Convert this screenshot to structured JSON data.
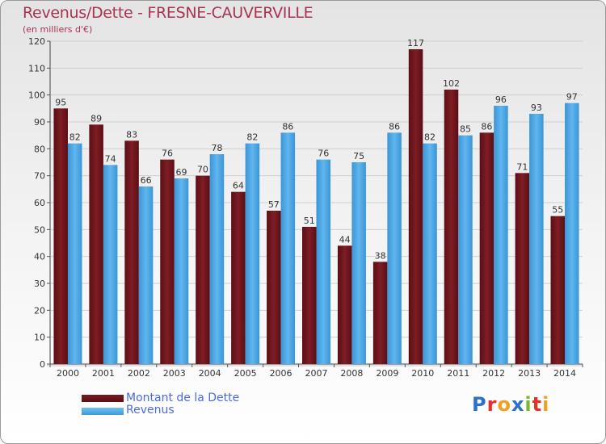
{
  "chart_data": {
    "type": "bar",
    "title": "Revenus/Dette - FRESNE-CAUVERVILLE",
    "subtitle": "(en milliers d'€)",
    "categories": [
      "2000",
      "2001",
      "2002",
      "2003",
      "2004",
      "2005",
      "2006",
      "2007",
      "2008",
      "2009",
      "2010",
      "2011",
      "2012",
      "2013",
      "2014"
    ],
    "series": [
      {
        "name": "Montant de la Dette",
        "color": "#6b1419",
        "values": [
          95,
          89,
          83,
          76,
          70,
          64,
          57,
          51,
          44,
          38,
          117,
          102,
          86,
          71,
          55
        ]
      },
      {
        "name": "Revenus",
        "color": "#4aa6e6",
        "values": [
          82,
          74,
          66,
          69,
          78,
          82,
          86,
          76,
          75,
          86,
          82,
          85,
          96,
          93,
          97
        ]
      }
    ],
    "ylim": [
      0,
      120
    ],
    "yticks": [
      0,
      10,
      20,
      30,
      40,
      50,
      60,
      70,
      80,
      90,
      100,
      110,
      120
    ],
    "grid": true,
    "legend_position": "bottom-left",
    "data_labels": true
  },
  "logo": {
    "text": "Proxiti",
    "colors": [
      "#2e6fc8",
      "#e8302a",
      "#f0a020",
      "#2e6fc8",
      "#7cb82e",
      "#e8302a",
      "#f0a020"
    ]
  }
}
